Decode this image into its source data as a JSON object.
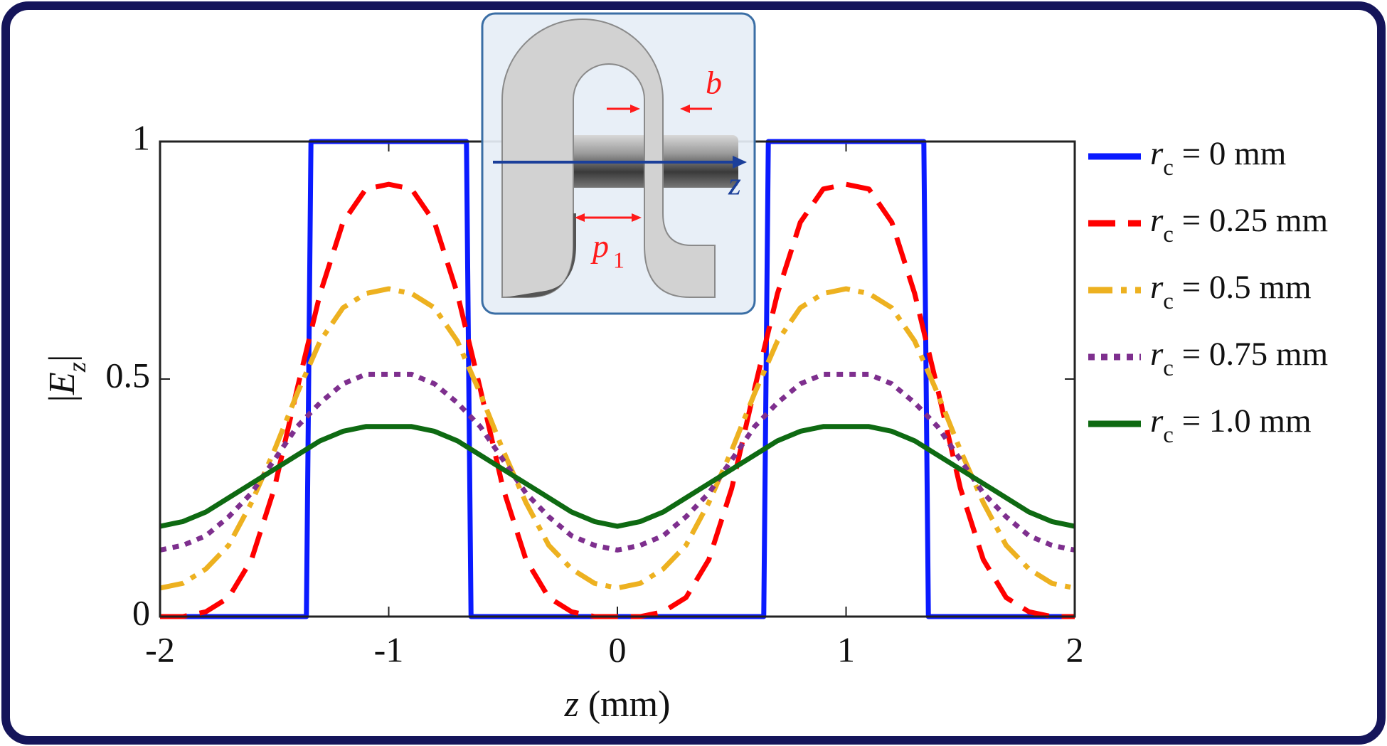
{
  "chart_data": {
    "type": "line",
    "x_label": "z (mm)",
    "y_label": "|Ez|",
    "x": [
      -2,
      -1.9,
      -1.8,
      -1.7,
      -1.6,
      -1.5,
      -1.4,
      -1.3,
      -1.2,
      -1.1,
      -1,
      -0.9,
      -0.8,
      -0.7,
      -0.6,
      -0.5,
      -0.4,
      -0.3,
      -0.2,
      -0.1,
      0,
      0.1,
      0.2,
      0.3,
      0.4,
      0.5,
      0.6,
      0.7,
      0.8,
      0.9,
      1,
      1.1,
      1.2,
      1.3,
      1.4,
      1.5,
      1.6,
      1.7,
      1.8,
      1.9,
      2
    ],
    "series": [
      {
        "name": "rc = 0 mm",
        "color": "#0a1aff",
        "style": "solid",
        "x": [
          -2,
          -1.36,
          -1.34,
          -0.66,
          -0.64,
          0.64,
          0.66,
          1.34,
          1.36,
          2
        ],
        "values": [
          0,
          0,
          1,
          1,
          0,
          0,
          1,
          1,
          0,
          0
        ]
      },
      {
        "name": "rc = 0.25 mm",
        "color": "#ff0000",
        "style": "dashed",
        "values": [
          0,
          0,
          0.01,
          0.04,
          0.12,
          0.27,
          0.48,
          0.68,
          0.83,
          0.9,
          0.91,
          0.9,
          0.83,
          0.68,
          0.48,
          0.27,
          0.12,
          0.04,
          0.01,
          0,
          0,
          0,
          0.01,
          0.04,
          0.12,
          0.27,
          0.48,
          0.68,
          0.83,
          0.9,
          0.91,
          0.9,
          0.83,
          0.68,
          0.48,
          0.27,
          0.12,
          0.04,
          0.01,
          0,
          0
        ]
      },
      {
        "name": "rc = 0.5 mm",
        "color": "#edb120",
        "style": "dashdot",
        "values": [
          0.06,
          0.07,
          0.1,
          0.15,
          0.24,
          0.35,
          0.47,
          0.58,
          0.65,
          0.68,
          0.69,
          0.68,
          0.65,
          0.58,
          0.47,
          0.35,
          0.24,
          0.15,
          0.1,
          0.07,
          0.06,
          0.07,
          0.1,
          0.15,
          0.24,
          0.35,
          0.47,
          0.58,
          0.65,
          0.68,
          0.69,
          0.68,
          0.65,
          0.58,
          0.47,
          0.35,
          0.24,
          0.15,
          0.1,
          0.07,
          0.06
        ]
      },
      {
        "name": "rc = 0.75 mm",
        "color": "#7e2f8e",
        "style": "dotted",
        "values": [
          0.14,
          0.15,
          0.17,
          0.21,
          0.26,
          0.33,
          0.4,
          0.45,
          0.49,
          0.51,
          0.51,
          0.51,
          0.49,
          0.45,
          0.4,
          0.33,
          0.26,
          0.21,
          0.17,
          0.15,
          0.14,
          0.15,
          0.17,
          0.21,
          0.26,
          0.33,
          0.4,
          0.45,
          0.49,
          0.51,
          0.51,
          0.51,
          0.49,
          0.45,
          0.4,
          0.33,
          0.26,
          0.21,
          0.17,
          0.15,
          0.14
        ]
      },
      {
        "name": "rc = 1.0 mm",
        "color": "#0e6a12",
        "style": "solid",
        "values": [
          0.19,
          0.2,
          0.22,
          0.25,
          0.28,
          0.31,
          0.34,
          0.37,
          0.39,
          0.4,
          0.4,
          0.4,
          0.39,
          0.37,
          0.34,
          0.31,
          0.28,
          0.25,
          0.22,
          0.2,
          0.19,
          0.2,
          0.22,
          0.25,
          0.28,
          0.31,
          0.34,
          0.37,
          0.39,
          0.4,
          0.4,
          0.4,
          0.39,
          0.37,
          0.34,
          0.31,
          0.28,
          0.25,
          0.22,
          0.2,
          0.19
        ]
      }
    ],
    "xlim": [
      -2,
      2
    ],
    "ylim": [
      0,
      1
    ],
    "xticks": [
      -2,
      -1,
      0,
      1,
      2
    ],
    "yticks": [
      0,
      0.5,
      1
    ],
    "grid": false,
    "legend": "right",
    "annotations": [
      "b",
      "p",
      "1",
      "z"
    ]
  }
}
